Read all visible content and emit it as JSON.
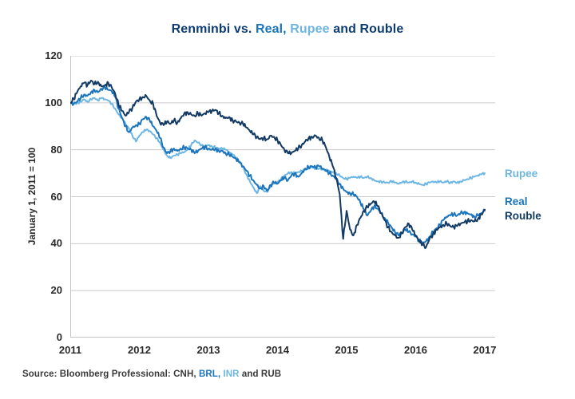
{
  "title": {
    "segments": [
      {
        "text": "Renminbi vs. ",
        "color": "#0d3c74"
      },
      {
        "text": "Real, ",
        "color": "#1b75bc"
      },
      {
        "text": "Rupee",
        "color": "#6db6e4"
      },
      {
        "text": " and Rouble",
        "color": "#0d3c74"
      }
    ]
  },
  "source": {
    "segments": [
      {
        "text": "Source: Bloomberg Professional: CNH, ",
        "color": "#3a3a3a"
      },
      {
        "text": "BRL, ",
        "color": "#1b75bc"
      },
      {
        "text": "INR",
        "color": "#6db6e4"
      },
      {
        "text": " and RUB",
        "color": "#3a3a3a"
      }
    ]
  },
  "chart_data": {
    "type": "line",
    "title": "Renminbi vs. Real, Rupee and Rouble",
    "xlabel": "",
    "ylabel": "January 1, 2011 = 100",
    "ylim": [
      0,
      120
    ],
    "xlim": [
      2011,
      2017.15
    ],
    "grid": true,
    "grid_color": "#cbcbcb",
    "axis_color": "#c2c2c2",
    "y_ticks": [
      120,
      100,
      80,
      60,
      40,
      20,
      0
    ],
    "x_ticks": [
      2011,
      2012,
      2013,
      2014,
      2015,
      2016,
      2017
    ],
    "legend_position": "right of line ends",
    "x_start": 2011.0,
    "x_step": 0.05,
    "series": [
      {
        "name": "Rupee",
        "color": "#6db6e4",
        "values": [
          100,
          99.5,
          100,
          100.5,
          101.5,
          100.5,
          101.5,
          102,
          101,
          102,
          101.5,
          101,
          99.5,
          97.5,
          95,
          93.5,
          91,
          89,
          86,
          83.5,
          86,
          87.5,
          88.5,
          88,
          86.5,
          85,
          83,
          80,
          77.5,
          76.5,
          77.5,
          78,
          78.5,
          79,
          80,
          82,
          84,
          83,
          82,
          81.5,
          82,
          81.5,
          81,
          80.5,
          80.5,
          80,
          79,
          78,
          76.5,
          75,
          72.5,
          69.5,
          66.5,
          64,
          61.5,
          64.5,
          62.5,
          62,
          64.5,
          66,
          66,
          67.5,
          69,
          70,
          70.5,
          70,
          70.5,
          71,
          71.5,
          72,
          72.5,
          72,
          72,
          71.5,
          71.5,
          71,
          70.5,
          70,
          69,
          68,
          67.5,
          68,
          68.5,
          68,
          68.5,
          68,
          68.5,
          68,
          67,
          66.5,
          66.5,
          66,
          66,
          66.5,
          66,
          65.5,
          66,
          66.5,
          66,
          66.5,
          66,
          65.5,
          65,
          65.5,
          66,
          66.5,
          66,
          66.5,
          66,
          66.5,
          66,
          66.5,
          66,
          66.5,
          67,
          67.5,
          68,
          68.5,
          69,
          69.5,
          70
        ]
      },
      {
        "name": "Real",
        "color": "#1b75bc",
        "values": [
          100,
          99.5,
          100.5,
          102,
          103.5,
          103,
          104.5,
          105.5,
          104.5,
          106,
          106.5,
          105.5,
          105,
          102.5,
          97.5,
          93.5,
          90,
          87.5,
          89.5,
          90.5,
          91,
          93,
          94,
          92.5,
          90,
          88,
          85,
          81,
          78.5,
          79.5,
          80.5,
          79.5,
          80.5,
          81,
          80.5,
          80,
          78.5,
          79.5,
          80.5,
          81,
          80.5,
          80,
          80.5,
          79.5,
          79.5,
          78.5,
          78,
          77,
          76,
          74.5,
          73,
          71,
          69,
          67,
          65,
          63.5,
          64.5,
          62.5,
          65,
          66,
          65.5,
          67,
          68,
          67,
          69,
          70,
          68.5,
          70,
          72,
          72.5,
          73,
          72.5,
          73,
          72,
          71,
          70,
          69,
          67.5,
          65.5,
          63.5,
          62,
          61.5,
          61,
          60,
          57.5,
          54.5,
          52,
          54,
          56,
          55,
          53,
          51,
          49,
          47,
          45,
          43.5,
          44.5,
          46,
          45,
          44,
          43,
          41.5,
          40.5,
          41,
          43,
          45,
          46.5,
          48,
          50,
          51.5,
          52,
          52.5,
          52,
          53,
          53.5,
          53,
          52.5,
          51.5,
          52,
          53,
          54
        ]
      },
      {
        "name": "Rouble",
        "color": "#123a64",
        "values": [
          100,
          101.5,
          104.5,
          107,
          108.5,
          107.5,
          109.5,
          108,
          109,
          107,
          107.5,
          108.5,
          106.5,
          104,
          99,
          96.5,
          94.5,
          96,
          98,
          100.5,
          101.5,
          102.5,
          103,
          101,
          99.5,
          94.5,
          91.5,
          90.5,
          92,
          91,
          92.5,
          91.5,
          93.5,
          95.5,
          96,
          95,
          94.5,
          95.5,
          94.5,
          95.5,
          96,
          96.5,
          97,
          95.5,
          94.5,
          93.5,
          94,
          92.5,
          92,
          91.5,
          91,
          89.5,
          88,
          86.5,
          85.5,
          84.5,
          85,
          84.5,
          86,
          85.5,
          84,
          82,
          80,
          78.5,
          78.5,
          79.5,
          80.5,
          82,
          83.5,
          85,
          85.5,
          86,
          85,
          84,
          81,
          77,
          73,
          68,
          61,
          42,
          54,
          46,
          43.5,
          48,
          51,
          54,
          55.5,
          57,
          58,
          56,
          53,
          50,
          47,
          45,
          43.5,
          42.5,
          44.5,
          47,
          48.5,
          46,
          43.5,
          41,
          39.5,
          38.5,
          42,
          44,
          46,
          47,
          48,
          48.5,
          47.5,
          47,
          47.5,
          48.5,
          49,
          49.5,
          50,
          49.5,
          50.5,
          52.5,
          54.5
        ]
      }
    ]
  }
}
